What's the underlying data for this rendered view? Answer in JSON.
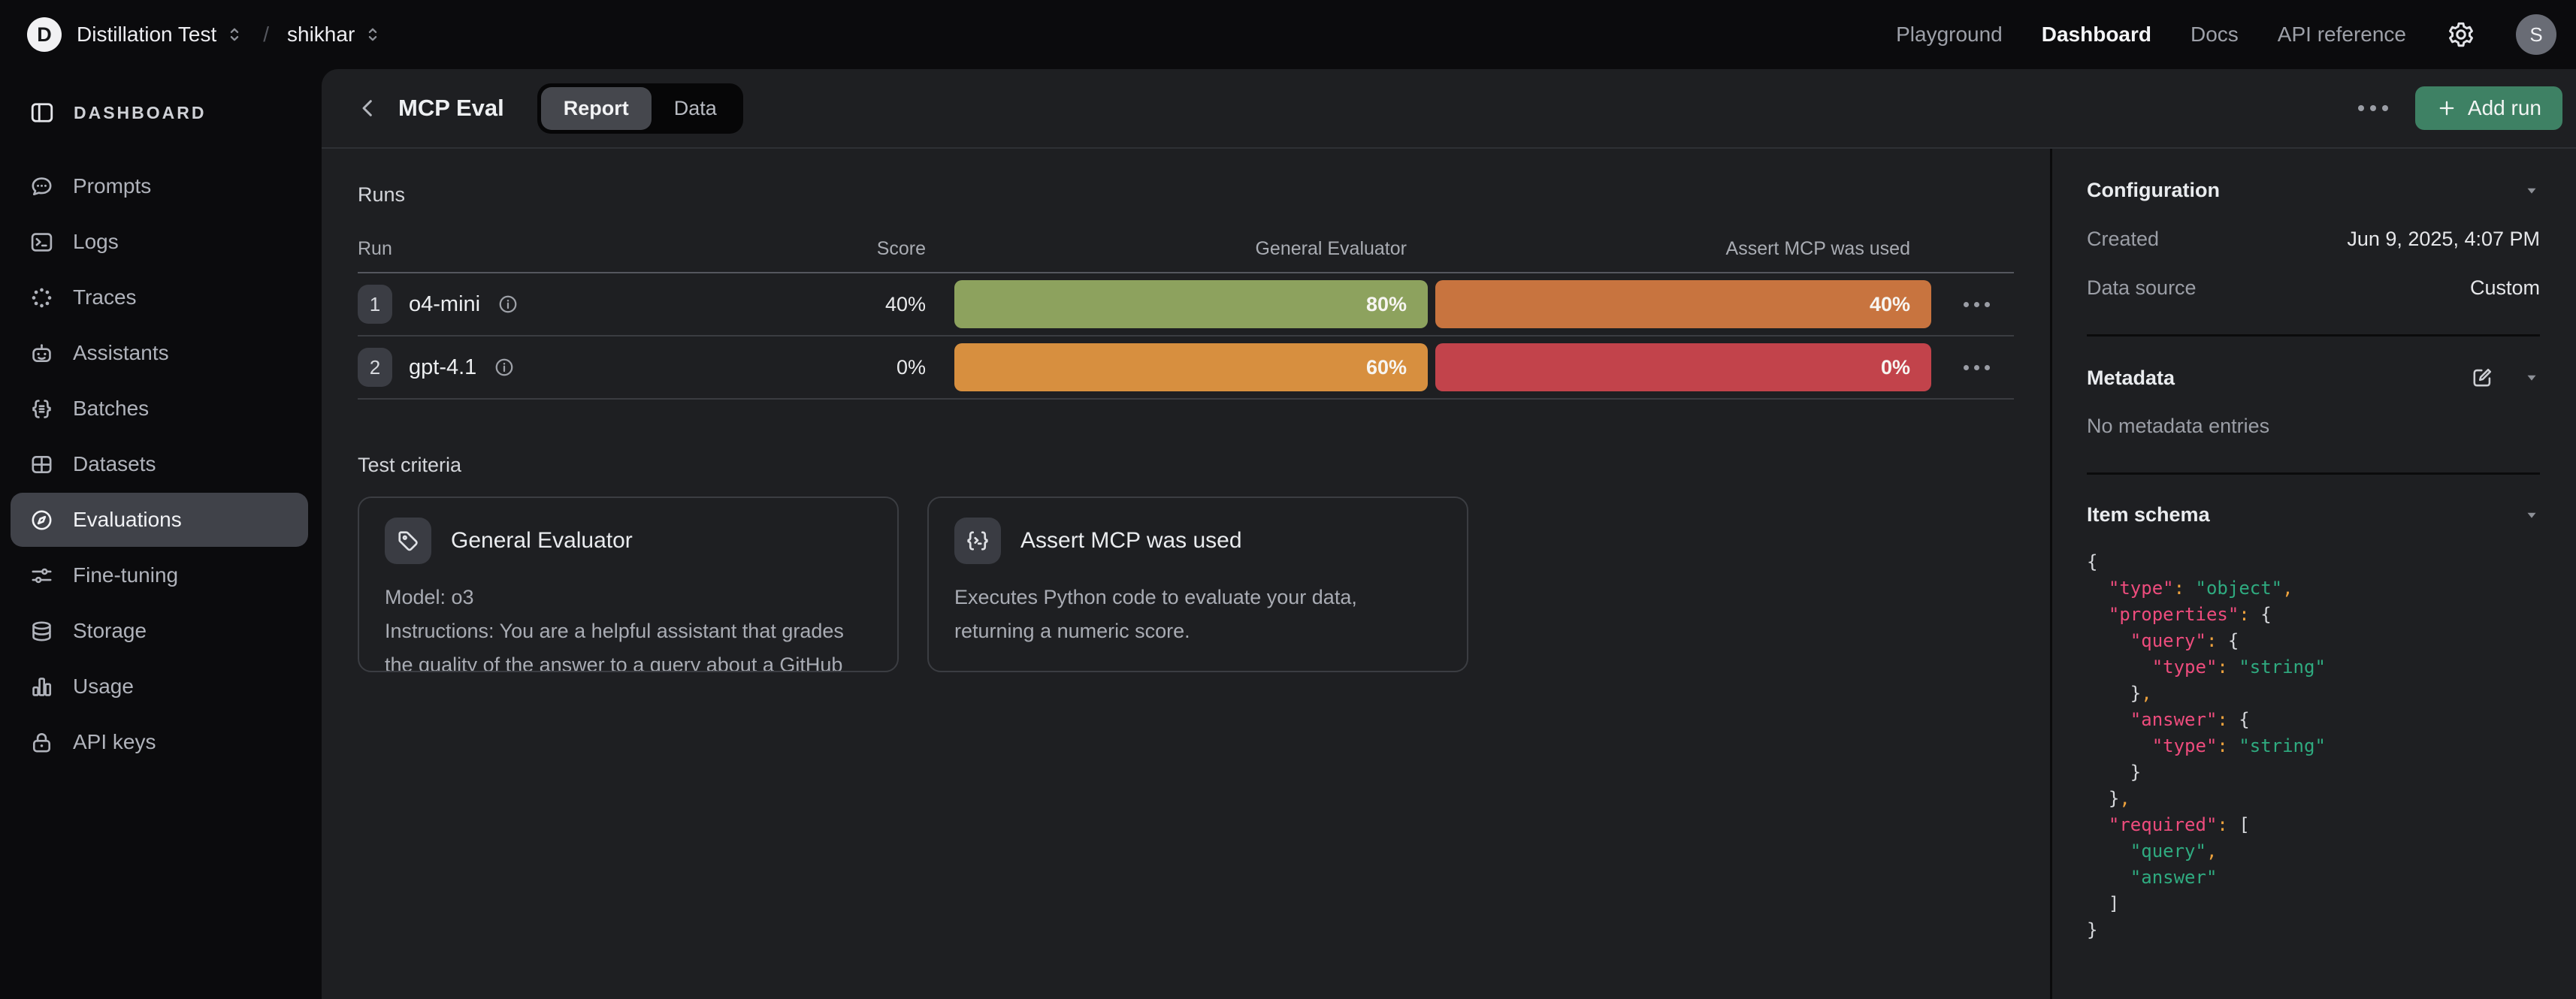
{
  "navbar": {
    "logo_letter": "D",
    "org": "Distillation Test",
    "separator": "/",
    "project": "shikhar",
    "links": [
      "Playground",
      "Dashboard",
      "Docs",
      "API reference"
    ],
    "avatar_letter": "S"
  },
  "sidebar": {
    "header": "DASHBOARD",
    "items": [
      {
        "label": "Prompts"
      },
      {
        "label": "Logs"
      },
      {
        "label": "Traces"
      },
      {
        "label": "Assistants"
      },
      {
        "label": "Batches"
      },
      {
        "label": "Datasets"
      },
      {
        "label": "Evaluations"
      },
      {
        "label": "Fine-tuning"
      },
      {
        "label": "Storage"
      },
      {
        "label": "Usage"
      },
      {
        "label": "API keys"
      }
    ]
  },
  "page": {
    "title": "MCP Eval",
    "tabs": [
      {
        "label": "Report"
      },
      {
        "label": "Data"
      }
    ],
    "add_run_label": "Add run"
  },
  "runs": {
    "section_label": "Runs",
    "columns": [
      "Run",
      "Score",
      "General Evaluator",
      "Assert MCP was used"
    ],
    "rows": [
      {
        "index": "1",
        "name": "o4-mini",
        "score": "40%",
        "general": {
          "value": "80%",
          "color": "#8da25e"
        },
        "assert": {
          "value": "40%",
          "color": "#c8743f"
        }
      },
      {
        "index": "2",
        "name": "gpt-4.1",
        "score": "0%",
        "general": {
          "value": "60%",
          "color": "#d78f3f"
        },
        "assert": {
          "value": "0%",
          "color": "#c2434b"
        }
      }
    ]
  },
  "test_criteria": {
    "section_label": "Test criteria",
    "cards": [
      {
        "title": "General Evaluator",
        "model_line": "Model: o3",
        "description": "Instructions: You are a helpful assistant that grades the quality of the answer to a query about a GitHub repo. You will be given a query, the answer returned by the model, and the expected"
      },
      {
        "title": "Assert MCP was used",
        "description": "Executes Python code to evaluate your data, returning a numeric score."
      }
    ]
  },
  "config_panel": {
    "configuration": {
      "title": "Configuration",
      "rows": [
        {
          "label": "Created",
          "value": "Jun 9, 2025, 4:07 PM"
        },
        {
          "label": "Data source",
          "value": "Custom"
        }
      ]
    },
    "metadata": {
      "title": "Metadata",
      "empty_text": "No metadata entries"
    },
    "item_schema": {
      "title": "Item schema",
      "code": "{\n  \"type\": \"object\",\n  \"properties\": {\n    \"query\": {\n      \"type\": \"string\"\n    },\n    \"answer\": {\n      \"type\": \"string\"\n    }\n  },\n  \"required\": [\n    \"query\",\n    \"answer\"\n  ]\n}"
    }
  }
}
